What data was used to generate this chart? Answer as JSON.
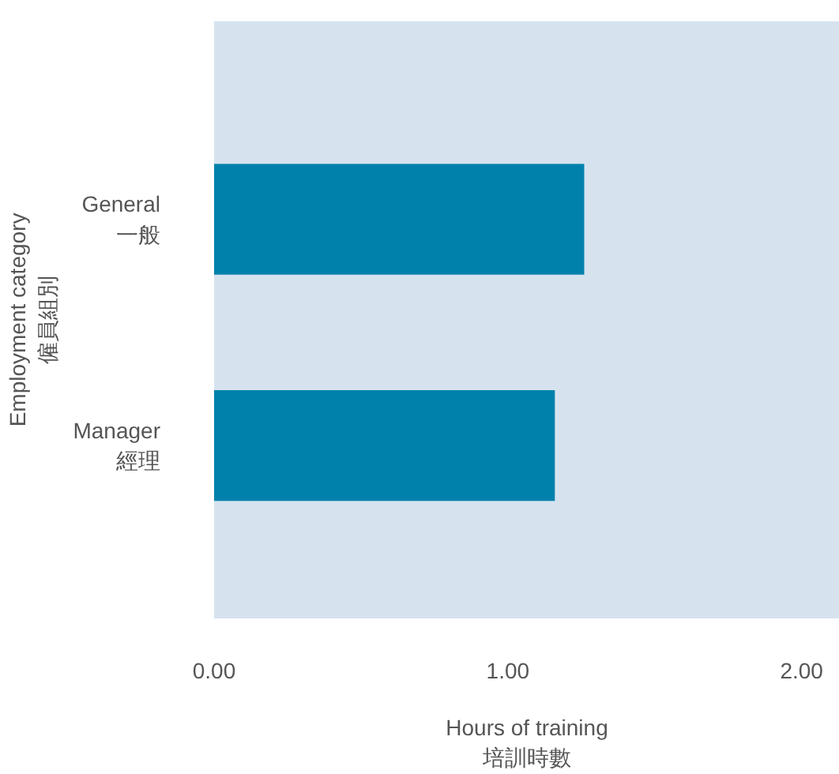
{
  "chart_data": {
    "type": "bar",
    "orientation": "horizontal",
    "categories": [
      "General\n一般",
      "Manager\n經理"
    ],
    "values": [
      1.26,
      1.16
    ],
    "color": "#0081ab",
    "xlim": [
      0,
      2.13
    ],
    "xticks": [
      {
        "value": 0,
        "label": "0.00"
      },
      {
        "value": 1,
        "label": "1.00"
      },
      {
        "value": 2,
        "label": "2.00"
      }
    ],
    "xlabel": "Hours of training\n培訓時數",
    "ylabel": "Employment category\n僱員組別",
    "grid": false
  }
}
